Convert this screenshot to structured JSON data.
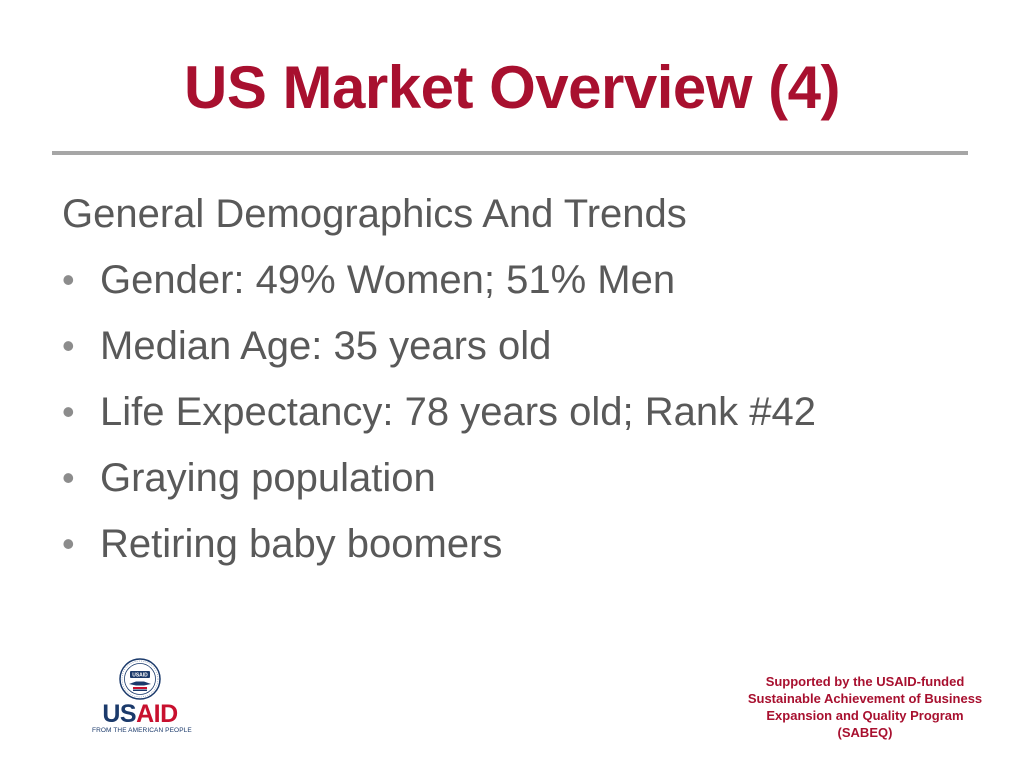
{
  "slide": {
    "title": "US Market Overview (4)",
    "heading": "General Demographics And Trends",
    "bullet_glyph": "•",
    "bullets": [
      "Gender: 49% Women; 51% Men",
      "Median Age: 35 years old",
      "Life Expectancy: 78 years old; Rank #42",
      "Graying population",
      "Retiring baby boomers"
    ]
  },
  "footer": {
    "logo": {
      "name_a": "US",
      "name_b": "AID",
      "tagline": "FROM THE AMERICAN PEOPLE",
      "seal_label": "USAID"
    },
    "support_lines": [
      "Supported by the USAID-funded",
      "Sustainable Achievement of Business",
      "Expansion and Quality Program",
      "(SABEQ)"
    ]
  },
  "colors": {
    "title": "#a8102f",
    "body_text": "#595959",
    "rule": "#a6a6a6",
    "logo_blue": "#1b3a6b",
    "logo_red": "#c8102e"
  }
}
